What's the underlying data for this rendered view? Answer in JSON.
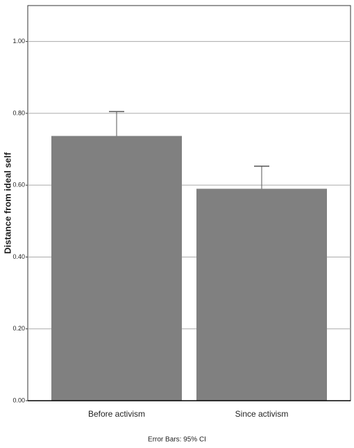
{
  "chart_data": {
    "type": "bar",
    "y_label": "Distance from ideal self",
    "categories": [
      "Before activism",
      "Since activism"
    ],
    "values": [
      0.737,
      0.59
    ],
    "errors": [
      0.068,
      0.063
    ],
    "color": "#808080",
    "ylim": [
      0,
      1.1
    ],
    "yticks": [
      {
        "value": 0,
        "label": "0.00"
      },
      {
        "value": 0.2,
        "label": "0.20"
      },
      {
        "value": 0.4,
        "label": "0.40"
      },
      {
        "value": 0.6,
        "label": "0.60"
      },
      {
        "value": 0.8,
        "label": "0.80"
      },
      {
        "value": 1,
        "label": "1.00"
      }
    ],
    "grid": true,
    "annotation": "Error Bars: 95% CI"
  }
}
